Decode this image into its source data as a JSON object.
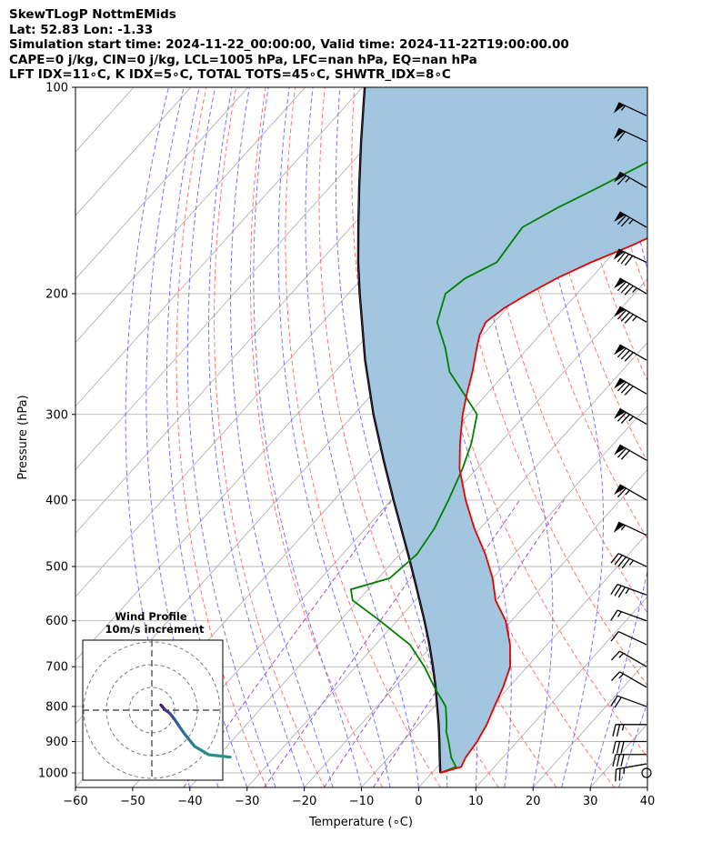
{
  "header": {
    "title": "SkewTLogP NottmEMids",
    "location": "Lat: 52.83   Lon: -1.33",
    "times": "Simulation start time: 2024-11-22_00:00:00, Valid time: 2024-11-22T19:00:00.00",
    "params": "CAPE=0 j/kg, CIN=0 j/kg, LCL=1005 hPa, LFC=nan hPa, EQ=nan hPa",
    "indices": "LFT IDX=11∘C, K IDX=5∘C, TOTAL TOTS=45∘C, SHWTR_IDX=8∘C"
  },
  "chart_data": {
    "type": "skew-t log-p",
    "xlabel": "Temperature (∘C)",
    "ylabel": "Pressure (hPa)",
    "xlim": [
      -60,
      40
    ],
    "ylim": [
      1050,
      100
    ],
    "x_ticks": [
      "−60",
      "−50",
      "−40",
      "−30",
      "−20",
      "−10",
      "0",
      "10",
      "20",
      "30",
      "40"
    ],
    "y_ticks": [
      "100",
      "200",
      "300",
      "400",
      "500",
      "600",
      "700",
      "800",
      "900",
      "1000"
    ],
    "colors": {
      "temperature": "#e60000",
      "dewpoint": "#008000",
      "parcel": "#000000",
      "cape_fill": "#a3c6e0",
      "dry_adiabats": "#ff6666",
      "moist_adiabats": "#6666ff",
      "mixing_ratio": "#9955cc",
      "isotherms": "#aaaaaa"
    },
    "temperature_profile": {
      "pressure": [
        1000,
        980,
        950,
        900,
        850,
        800,
        750,
        700,
        650,
        600,
        560,
        520,
        480,
        440,
        400,
        360,
        330,
        300,
        280,
        260,
        240,
        230,
        220,
        210,
        200,
        190,
        180,
        170,
        160,
        150,
        140,
        130,
        120,
        110,
        100
      ],
      "temp": [
        1.5,
        4.2,
        3.5,
        3.0,
        2.0,
        0.5,
        -1.0,
        -3.0,
        -6.5,
        -11.0,
        -16.0,
        -20.0,
        -25.0,
        -31.0,
        -37.0,
        -43.0,
        -47.0,
        -51.0,
        -53.5,
        -56.0,
        -59.0,
        -60.5,
        -61.5,
        -60.5,
        -58.5,
        -56.0,
        -52.5,
        -48.0,
        -44.0,
        -42.0,
        -40.5,
        -40.0,
        -40.5,
        -41.0,
        -42.0
      ]
    },
    "dewpoint_profile": {
      "pressure": [
        1000,
        980,
        950,
        900,
        870,
        850,
        800,
        750,
        700,
        650,
        600,
        560,
        540,
        520,
        480,
        440,
        400,
        360,
        330,
        300,
        280,
        260,
        240,
        220,
        200,
        190,
        180,
        170,
        160,
        150,
        140,
        130,
        120,
        110,
        100
      ],
      "dewp": [
        1.5,
        3.3,
        1.0,
        -2.0,
        -4.0,
        -5.0,
        -8.0,
        -13.0,
        -18.0,
        -24.0,
        -33.0,
        -41.0,
        -43.0,
        -38.0,
        -37.0,
        -38.0,
        -40.0,
        -42.5,
        -45.0,
        -48.5,
        -54.0,
        -60.0,
        -64.5,
        -70.0,
        -73.0,
        -72.0,
        -69.0,
        -69.5,
        -70.0,
        -67.0,
        -63.0,
        -59.0,
        -55.0,
        -52.0,
        -49.0
      ]
    },
    "parcel_profile": {
      "pressure": [
        1000,
        950,
        900,
        850,
        800,
        750,
        700,
        650,
        600,
        560,
        520,
        480,
        440,
        400,
        350,
        300,
        250,
        200,
        180,
        160,
        140,
        120,
        100
      ],
      "temp": [
        1.5,
        -1.0,
        -3.6,
        -6.4,
        -9.5,
        -12.8,
        -16.5,
        -20.6,
        -25.2,
        -29.3,
        -33.7,
        -38.5,
        -43.8,
        -49.6,
        -57.6,
        -66.6,
        -76.6,
        -88.0,
        -93.2,
        -98.7,
        -104.8,
        -111.7,
        -119.6
      ]
    },
    "wind_barbs": {
      "pressure": [
        1000,
        970,
        940,
        900,
        850,
        800,
        750,
        700,
        650,
        600,
        550,
        500,
        450,
        400,
        350,
        310,
        280,
        250,
        220,
        200,
        180,
        160,
        140,
        120,
        110
      ],
      "speed_kt": [
        3,
        25,
        30,
        30,
        25,
        20,
        15,
        15,
        10,
        15,
        35,
        45,
        55,
        65,
        70,
        75,
        80,
        80,
        85,
        85,
        80,
        75,
        65,
        60,
        55
      ],
      "direction_deg": [
        200,
        260,
        270,
        270,
        270,
        290,
        300,
        300,
        295,
        290,
        290,
        295,
        295,
        300,
        300,
        300,
        300,
        300,
        300,
        300,
        295,
        300,
        300,
        295,
        295
      ]
    },
    "hodograph": {
      "title": "Wind Profile",
      "subtitle": "10m/s increment",
      "u": [
        1.5,
        2.5,
        5.0,
        9.0,
        13.0,
        17.0,
        22.0,
        30.0,
        42.0,
        60.0
      ],
      "v": [
        2.0,
        1.0,
        -2.0,
        -5.0,
        -10.0,
        -16.0,
        -23.0,
        -33.0,
        -40.0,
        -42.0
      ]
    }
  }
}
